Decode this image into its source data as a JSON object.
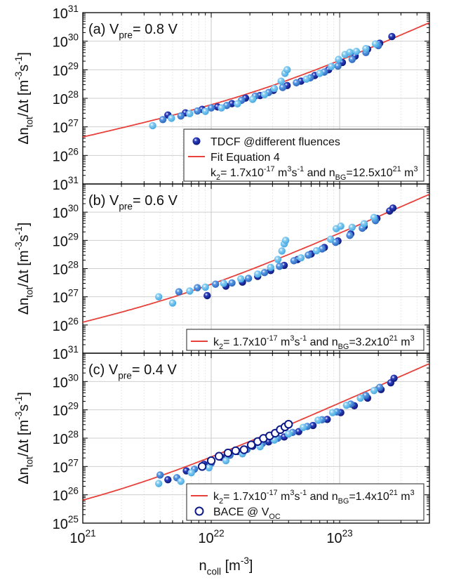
{
  "figure": {
    "xlabel": {
      "main": "n",
      "sub": "coll",
      "tail": " [m",
      "sup": "-3",
      "end": "]"
    },
    "ylabel": {
      "delta1": "Δn",
      "sub": "tot",
      "mid": "/Δt [m",
      "sup1": "-3",
      "s": "s",
      "sup2": "-1",
      "end": "]"
    }
  },
  "chart_data": [
    {
      "type": "scatter",
      "panel_label": {
        "pre": "(a) V",
        "sub": "pre",
        "post": "= 0.8 V"
      },
      "xscale": "log",
      "yscale": "log",
      "xlim": [
        1e+21,
        5e+23
      ],
      "ylim": [
        1e+25,
        1e+31
      ],
      "x_ticks": [
        1e+21,
        1e+22,
        1e+23
      ],
      "x_tick_labels": [
        {
          "base": "10",
          "exp": "21"
        },
        {
          "base": "10",
          "exp": "22"
        },
        {
          "base": "10",
          "exp": "23"
        }
      ],
      "y_ticks": [
        1e+26,
        1e+27,
        1e+28,
        1e+29,
        1e+30,
        1e+31
      ],
      "y_tick_labels": [
        {
          "base": "10",
          "exp": "26"
        },
        {
          "base": "10",
          "exp": "27"
        },
        {
          "base": "10",
          "exp": "28"
        },
        {
          "base": "10",
          "exp": "29"
        },
        {
          "base": "10",
          "exp": "30"
        },
        {
          "base": "10",
          "exp": "31"
        }
      ],
      "grid": true,
      "legend_position": "bottom-right",
      "fit": {
        "k2": 1.7e-17,
        "nBG": 1.25e+22,
        "color": "#e8403a"
      },
      "series": [
        {
          "name": "TDCF @different fluences",
          "marker": "filled-circle",
          "color": "#0d1a8a",
          "points": [
            [
              4.6e+21,
              2.6e+27
            ],
            [
              6.3e+21,
              3.1e+27
            ],
            [
              8.5e+21,
              4.1e+27
            ],
            [
              1.12e+22,
              5e+27
            ],
            [
              1.45e+22,
              6.5e+27
            ],
            [
              1.85e+22,
              1.02e+28
            ],
            [
              2.4e+22,
              1.25e+28
            ],
            [
              3.05e+22,
              1.9e+28
            ],
            [
              3.9e+22,
              2.8e+28
            ],
            [
              5e+22,
              4e+28
            ],
            [
              6.4e+22,
              6.3e+28
            ],
            [
              8.2e+22,
              1e+29
            ],
            [
              1.05e+23,
              1.8e+29
            ],
            [
              1.32e+23,
              3e+29
            ],
            [
              1.65e+23,
              5.2e+29
            ],
            [
              2.05e+23,
              8.5e+29
            ],
            [
              2.55e+23,
              1.45e+30
            ]
          ]
        },
        {
          "name": "",
          "marker": "filled-circle",
          "color": "#3b7fd4",
          "points": [
            [
              4.2e+21,
              1.8e+27
            ],
            [
              5.8e+21,
              2.4e+27
            ],
            [
              7.8e+21,
              3.6e+27
            ],
            [
              1e+22,
              4.6e+27
            ],
            [
              1.32e+22,
              5.6e+27
            ],
            [
              1.72e+22,
              8.5e+27
            ],
            [
              2.2e+22,
              1.2e+28
            ],
            [
              2.8e+22,
              1.6e+28
            ],
            [
              3.6e+22,
              2.4e+28
            ],
            [
              4.6e+22,
              3.5e+28
            ],
            [
              5.9e+22,
              5.2e+28
            ],
            [
              7.6e+22,
              8.3e+28
            ],
            [
              9.7e+22,
              1.35e+29
            ],
            [
              1.25e+23,
              2.3e+29
            ],
            [
              1.6e+23,
              4e+29
            ],
            [
              2e+23,
              7e+29
            ]
          ]
        },
        {
          "name": "",
          "marker": "filled-circle",
          "color": "#5fb8ea",
          "points": [
            [
              3.5e+21,
              1.1e+27
            ],
            [
              4.9e+21,
              2e+27
            ],
            [
              6.8e+21,
              2.9e+27
            ],
            [
              9e+21,
              3.5e+27
            ],
            [
              1.2e+22,
              4.6e+27
            ],
            [
              1.6e+22,
              6.4e+27
            ],
            [
              2.1e+22,
              9.2e+27
            ],
            [
              2.6e+22,
              1.35e+28
            ],
            [
              3.1e+22,
              2.2e+28
            ],
            [
              3.5e+22,
              4e+28
            ],
            [
              3.75e+22,
              7.5e+28
            ],
            [
              3.9e+22,
              1e+29
            ],
            [
              5.5e+22,
              4.7e+28
            ],
            [
              7e+22,
              7.5e+28
            ],
            [
              8.6e+22,
              1.3e+29
            ],
            [
              9.8e+22,
              2.3e+29
            ],
            [
              1.1e+23,
              3.4e+29
            ],
            [
              1.2e+23,
              4.1e+29
            ],
            [
              1.35e+23,
              4.4e+29
            ],
            [
              1.6e+23,
              5.5e+29
            ],
            [
              1.9e+23,
              8e+29
            ]
          ]
        }
      ],
      "legend": [
        {
          "kind": "marker-filled",
          "text": "TDCF @different fluences"
        },
        {
          "kind": "line",
          "text": "Fit Equation 4"
        },
        {
          "kind": "none",
          "text_parts": {
            "a": "k",
            "a_sub": "2",
            "b": "= 1.7x10",
            "b_sup": "-17",
            "c": " m",
            "c_sup": "3",
            "d": "s",
            "d_sup": "-1",
            "e": " and n",
            "e_sub": "BG",
            "f": "=12.5x10",
            "f_sup": "21",
            "g": " m",
            "g_sup": "3"
          }
        }
      ]
    },
    {
      "type": "scatter",
      "panel_label": {
        "pre": "(b) V",
        "sub": "pre",
        "post": "= 0.6 V"
      },
      "xscale": "log",
      "yscale": "log",
      "xlim": [
        1e+21,
        5e+23
      ],
      "ylim": [
        1e+25,
        1e+31
      ],
      "x_ticks": [
        1e+21,
        1e+22,
        1e+23
      ],
      "x_tick_labels": [
        {
          "base": "10",
          "exp": "21"
        },
        {
          "base": "10",
          "exp": "22"
        },
        {
          "base": "10",
          "exp": "23"
        }
      ],
      "y_ticks": [
        1e+26,
        1e+27,
        1e+28,
        1e+29,
        1e+30,
        1e+31
      ],
      "y_tick_labels": [
        {
          "base": "10",
          "exp": "26"
        },
        {
          "base": "10",
          "exp": "27"
        },
        {
          "base": "10",
          "exp": "28"
        },
        {
          "base": "10",
          "exp": "29"
        },
        {
          "base": "10",
          "exp": "30"
        },
        {
          "base": "10",
          "exp": "31"
        }
      ],
      "grid": true,
      "legend_position": "bottom-right",
      "fit": {
        "k2": 1.7e-17,
        "nBG": 3.2e+21,
        "color": "#e8403a"
      },
      "series": [
        {
          "name": "",
          "marker": "filled-circle",
          "color": "#0d1a8a",
          "points": [
            [
              9.3e+21,
              1.1e+27
            ],
            [
              1.3e+22,
              2.4e+27
            ],
            [
              1.75e+22,
              3.3e+27
            ],
            [
              2.3e+22,
              5.3e+27
            ],
            [
              2.9e+22,
              8.5e+27
            ],
            [
              3.7e+22,
              1.3e+28
            ],
            [
              4.7e+22,
              2.1e+28
            ],
            [
              6e+22,
              3.3e+28
            ],
            [
              7.6e+22,
              5.6e+28
            ],
            [
              9.7e+22,
              9.5e+28
            ],
            [
              1.22e+23,
              1.7e+29
            ],
            [
              1.55e+23,
              3.1e+29
            ],
            [
              1.95e+23,
              6e+29
            ],
            [
              2.45e+23,
              1.1e+30
            ],
            [
              2.6e+23,
              1.4e+30
            ]
          ]
        },
        {
          "name": "",
          "marker": "filled-circle",
          "color": "#3b7fd4",
          "points": [
            [
              5.6e+21,
              1.5e+27
            ],
            [
              7.8e+21,
              2.1e+27
            ],
            [
              1.08e+22,
              2.8e+27
            ],
            [
              1.45e+22,
              3.1e+27
            ],
            [
              1.95e+22,
              4.5e+27
            ],
            [
              2.6e+22,
              7.2e+27
            ],
            [
              3.4e+22,
              1.2e+28
            ],
            [
              4.4e+22,
              1.9e+28
            ],
            [
              5.7e+22,
              3e+28
            ],
            [
              7.3e+22,
              5e+28
            ],
            [
              9.3e+22,
              8.5e+28
            ],
            [
              1.2e+23,
              1.5e+29
            ],
            [
              1.5e+23,
              2.7e+29
            ],
            [
              1.9e+23,
              5e+29
            ]
          ]
        },
        {
          "name": "",
          "marker": "filled-circle",
          "color": "#5fb8ea",
          "points": [
            [
              3.9e+21,
              1e+27
            ],
            [
              5e+21,
              6e+26
            ],
            [
              6.8e+21,
              1.6e+27
            ],
            [
              9e+21,
              2.2e+27
            ],
            [
              1.25e+22,
              3e+27
            ],
            [
              1.7e+22,
              4.3e+27
            ],
            [
              2.3e+22,
              6.4e+27
            ],
            [
              2.9e+22,
              1.1e+28
            ],
            [
              3.3e+22,
              2.1e+28
            ],
            [
              3.55e+22,
              4.2e+28
            ],
            [
              3.7e+22,
              7.5e+28
            ],
            [
              3.8e+22,
              1e+29
            ],
            [
              5e+22,
              2.4e+28
            ],
            [
              6.6e+22,
              4.3e+28
            ],
            [
              8.5e+22,
              1.1e+29
            ],
            [
              9.4e+22,
              2.6e+29
            ],
            [
              1.02e+23,
              3.2e+29
            ],
            [
              1.25e+23,
              2.9e+29
            ],
            [
              1.55e+23,
              3.9e+29
            ],
            [
              1.85e+23,
              6.5e+29
            ]
          ]
        }
      ],
      "legend": [
        {
          "kind": "line",
          "text_parts": {
            "a": "k",
            "a_sub": "2",
            "b": "= 1.7x10",
            "b_sup": "-17",
            "c": " m",
            "c_sup": "3",
            "d": "s",
            "d_sup": "-1",
            "e": " and n",
            "e_sub": "BG",
            "f": "=3.2x10",
            "f_sup": "21",
            "g": " m",
            "g_sup": "3"
          }
        }
      ]
    },
    {
      "type": "scatter",
      "panel_label": {
        "pre": "(c) V",
        "sub": "pre",
        "post": "= 0.4 V"
      },
      "xscale": "log",
      "yscale": "log",
      "xlim": [
        1e+21,
        5e+23
      ],
      "ylim": [
        1e+25,
        1e+31
      ],
      "x_ticks": [
        1e+21,
        1e+22,
        1e+23
      ],
      "x_tick_labels": [
        {
          "base": "10",
          "exp": "21"
        },
        {
          "base": "10",
          "exp": "22"
        },
        {
          "base": "10",
          "exp": "23"
        }
      ],
      "y_ticks": [
        1e+25,
        1e+26,
        1e+27,
        1e+28,
        1e+29,
        1e+30,
        1e+31
      ],
      "y_tick_labels": [
        {
          "base": "10",
          "exp": "25"
        },
        {
          "base": "10",
          "exp": "26"
        },
        {
          "base": "10",
          "exp": "27"
        },
        {
          "base": "10",
          "exp": "28"
        },
        {
          "base": "10",
          "exp": "29"
        },
        {
          "base": "10",
          "exp": "30"
        },
        {
          "base": "10",
          "exp": "31"
        }
      ],
      "grid": true,
      "legend_position": "bottom-right",
      "fit": {
        "k2": 1.7e-17,
        "nBG": 1.4e+21,
        "color": "#e8403a"
      },
      "series": [
        {
          "name": "",
          "marker": "filled-circle",
          "color": "#0d1a8a",
          "points": [
            [
              4.6e+21,
              3.4e+26
            ],
            [
              6.4e+21,
              7e+26
            ],
            [
              8.8e+21,
              1.2e+27
            ],
            [
              1.2e+22,
              2.1e+27
            ],
            [
              1.6e+22,
              3.4e+27
            ],
            [
              2.1e+22,
              5.2e+27
            ],
            [
              2.8e+22,
              7.4e+27
            ],
            [
              3.7e+22,
              1.1e+28
            ],
            [
              4.8e+22,
              1.7e+28
            ],
            [
              6.2e+22,
              2.8e+28
            ],
            [
              8e+22,
              4.6e+28
            ],
            [
              1.02e+23,
              8e+28
            ],
            [
              1.3e+23,
              1.4e+29
            ],
            [
              1.65e+23,
              2.6e+29
            ],
            [
              2.1e+23,
              5.2e+29
            ],
            [
              2.5e+23,
              9e+29
            ],
            [
              2.65e+23,
              1.3e+30
            ]
          ]
        },
        {
          "name": "",
          "marker": "filled-circle",
          "color": "#3b7fd4",
          "points": [
            [
              4e+21,
              5e+26
            ],
            [
              5.4e+21,
              4e+26
            ],
            [
              7.4e+21,
              8e+26
            ],
            [
              1e+22,
              1.3e+27
            ],
            [
              1.4e+22,
              2.5e+27
            ],
            [
              1.9e+22,
              4e+27
            ],
            [
              2.5e+22,
              6.5e+27
            ],
            [
              3.3e+22,
              1e+28
            ],
            [
              4.3e+22,
              1.6e+28
            ],
            [
              5.6e+22,
              2.6e+28
            ],
            [
              7.3e+22,
              4.5e+28
            ],
            [
              9.5e+22,
              8.5e+28
            ],
            [
              1.22e+23,
              1.6e+29
            ],
            [
              1.6e+23,
              3.2e+29
            ],
            [
              2.05e+23,
              6.2e+29
            ]
          ]
        },
        {
          "name": "",
          "marker": "filled-circle",
          "color": "#5fb8ea",
          "points": [
            [
              3.9e+21,
              2.5e+26
            ],
            [
              5.8e+21,
              3e+26
            ],
            [
              7e+21,
              6e+26
            ],
            [
              9.6e+21,
              9e+26
            ],
            [
              1.3e+22,
              1.6e+27
            ],
            [
              1.75e+22,
              2.8e+27
            ],
            [
              2.4e+22,
              5e+27
            ],
            [
              3.1e+22,
              8.6e+27
            ],
            [
              4e+22,
              1.4e+28
            ],
            [
              5.2e+22,
              2.4e+28
            ],
            [
              6.8e+22,
              4.3e+28
            ],
            [
              8.8e+22,
              8e+28
            ],
            [
              1.13e+23,
              1.45e+29
            ],
            [
              1.45e+23,
              2.6e+29
            ],
            [
              1.85e+23,
              4.8e+29
            ]
          ]
        },
        {
          "name": "BACE @ V_OC",
          "marker": "open-circle",
          "color": "#0d1a8a",
          "points": [
            [
              8.5e+21,
              1e+27
            ],
            [
              1e+22,
              1.6e+27
            ],
            [
              1.15e+22,
              2.3e+27
            ],
            [
              1.35e+22,
              3e+27
            ],
            [
              1.55e+22,
              3.6e+27
            ],
            [
              1.8e+22,
              3.9e+27
            ],
            [
              2.05e+22,
              5.8e+27
            ],
            [
              2.3e+22,
              7.6e+27
            ],
            [
              2.55e+22,
              9.8e+27
            ],
            [
              2.85e+22,
              1.2e+28
            ],
            [
              3.15e+22,
              1.5e+28
            ],
            [
              3.45e+22,
              2e+28
            ],
            [
              3.75e+22,
              2.5e+28
            ],
            [
              4e+22,
              3.1e+28
            ]
          ]
        }
      ],
      "legend": [
        {
          "kind": "line",
          "text_parts": {
            "a": "k",
            "a_sub": "2",
            "b": "= 1.7x10",
            "b_sup": "-17",
            "c": " m",
            "c_sup": "3",
            "d": "s",
            "d_sup": "-1",
            "e": " and n",
            "e_sub": "BG",
            "f": "=1.4x10",
            "f_sup": "21",
            "g": " m",
            "g_sup": "3"
          }
        },
        {
          "kind": "marker-open",
          "text_parts": {
            "a": "BACE @ V",
            "a_sub": "OC"
          }
        }
      ]
    }
  ]
}
